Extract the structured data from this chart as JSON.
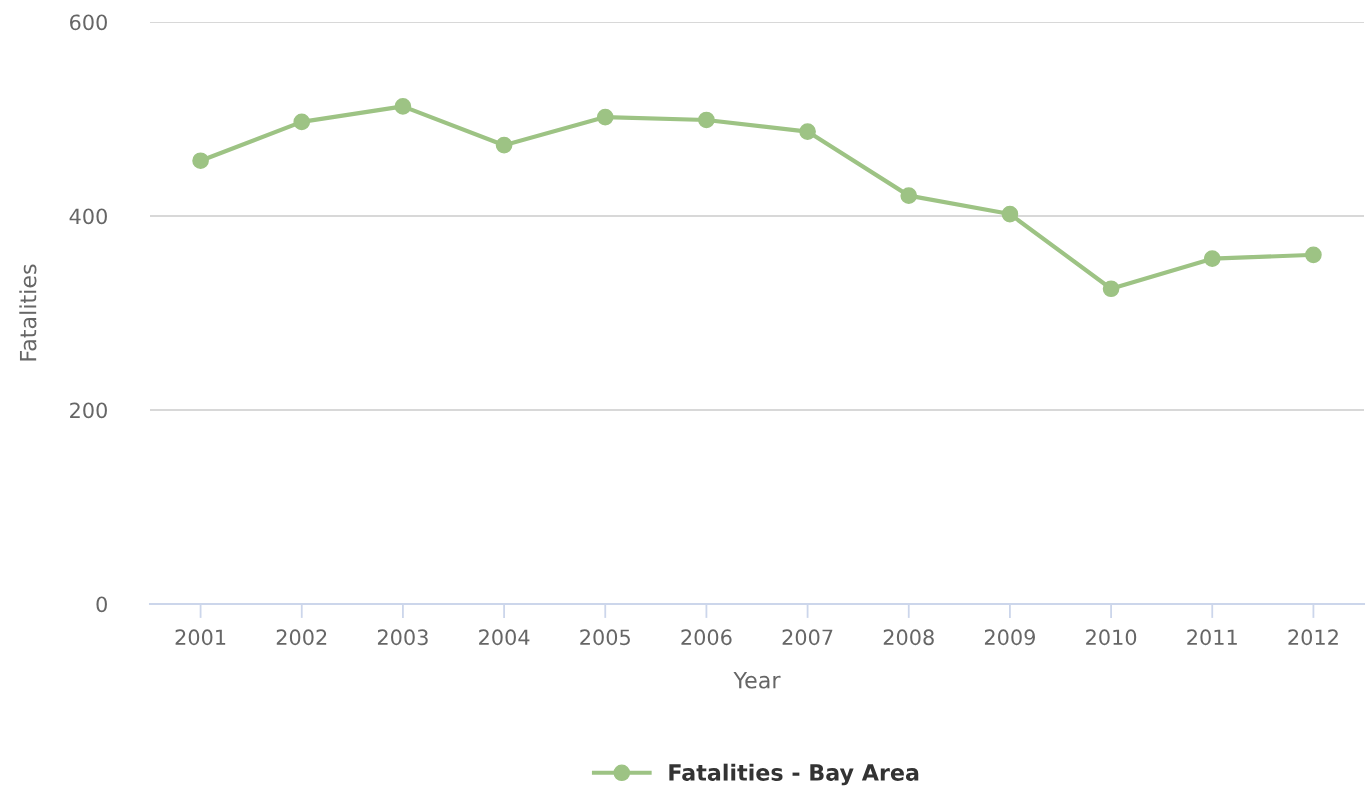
{
  "chart_data": {
    "type": "line",
    "xlabel": "Year",
    "ylabel": "Fatalities",
    "categories": [
      "2001",
      "2002",
      "2003",
      "2004",
      "2005",
      "2006",
      "2007",
      "2008",
      "2009",
      "2010",
      "2011",
      "2012"
    ],
    "series": [
      {
        "name": "Fatalities - Bay Area",
        "color": "#9dc384",
        "values": [
          457,
          497,
          513,
          473,
          502,
          499,
          487,
          421,
          402,
          325,
          356,
          360
        ]
      }
    ],
    "ylim": [
      0,
      600
    ],
    "yticks": [
      0,
      200,
      400,
      600
    ],
    "grid": "y",
    "legend": "bottom",
    "marker": "circle",
    "line_style": "solid"
  }
}
